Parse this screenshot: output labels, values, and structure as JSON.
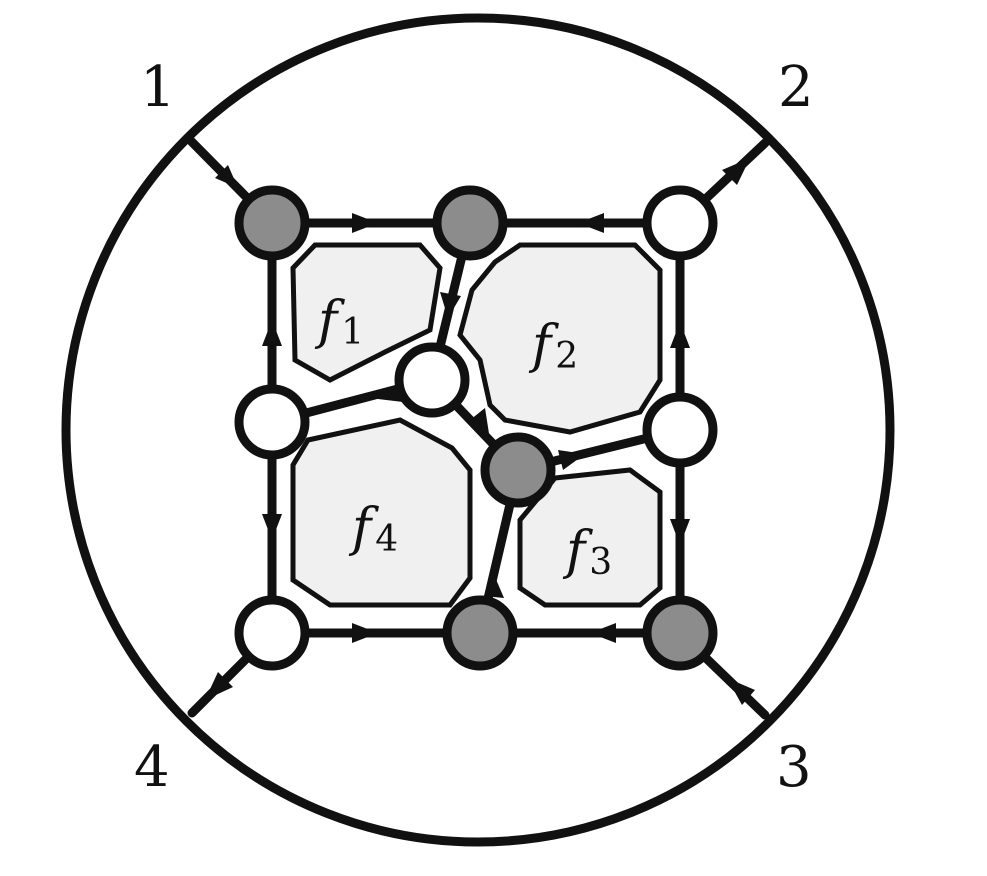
{
  "external_labels": [
    "1",
    "2",
    "3",
    "4"
  ],
  "faces": [
    {
      "name": "f",
      "sub": "1"
    },
    {
      "name": "f",
      "sub": "2"
    },
    {
      "name": "f",
      "sub": "3"
    },
    {
      "name": "f",
      "sub": "4"
    }
  ],
  "colors": {
    "line": "#111111",
    "black_vertex": "#8c8c8c",
    "white_vertex": "#ffffff",
    "face_fill": "#f0f0f0"
  }
}
